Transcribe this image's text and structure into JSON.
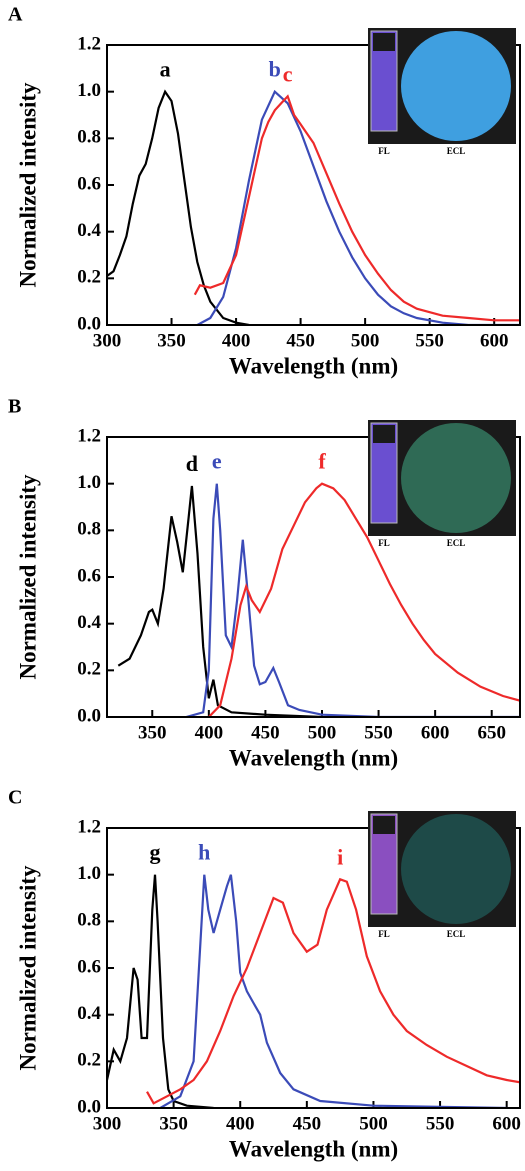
{
  "chart_data": [
    {
      "type": "line",
      "panel": "A",
      "xlabel": "Wavelength (nm)",
      "ylabel": "Normalized intensity",
      "xlim": [
        300,
        620
      ],
      "ylim": [
        0,
        1.2
      ],
      "xticks": [
        300,
        350,
        400,
        450,
        500,
        550,
        600
      ],
      "yticks": [
        {
          "value": 0,
          "label": "0.0"
        },
        0.2,
        0.4,
        0.6,
        0.8,
        {
          "value": 1,
          "label": "1.0"
        },
        1.2
      ],
      "inset": {
        "labels": [
          "FL",
          "ECL"
        ],
        "colors": [
          "#6a4fd0",
          "#3f9fe0"
        ]
      },
      "series": [
        {
          "name": "a",
          "color": "#000000",
          "x": [
            300,
            305,
            310,
            315,
            320,
            325,
            330,
            335,
            340,
            345,
            350,
            355,
            360,
            365,
            370,
            375,
            380,
            390,
            400,
            410
          ],
          "values": [
            0.21,
            0.23,
            0.3,
            0.38,
            0.52,
            0.64,
            0.69,
            0.8,
            0.93,
            1.0,
            0.96,
            0.82,
            0.62,
            0.42,
            0.27,
            0.17,
            0.1,
            0.03,
            0.01,
            0
          ]
        },
        {
          "name": "b",
          "color": "#3b4bb8",
          "x": [
            370,
            380,
            390,
            400,
            410,
            420,
            430,
            440,
            450,
            460,
            470,
            480,
            490,
            500,
            510,
            520,
            530,
            540,
            560,
            580,
            620
          ],
          "values": [
            0,
            0.03,
            0.12,
            0.33,
            0.62,
            0.88,
            1.0,
            0.95,
            0.83,
            0.68,
            0.53,
            0.4,
            0.29,
            0.2,
            0.13,
            0.08,
            0.05,
            0.03,
            0.01,
            0,
            0
          ]
        },
        {
          "name": "c",
          "color": "#ee2a2a",
          "x": [
            368,
            372,
            380,
            390,
            400,
            410,
            420,
            425,
            430,
            435,
            440,
            445,
            450,
            460,
            470,
            480,
            490,
            500,
            510,
            520,
            530,
            540,
            560,
            580,
            600,
            620
          ],
          "values": [
            0.13,
            0.17,
            0.16,
            0.18,
            0.3,
            0.55,
            0.8,
            0.87,
            0.92,
            0.95,
            0.98,
            0.9,
            0.86,
            0.78,
            0.65,
            0.52,
            0.4,
            0.3,
            0.22,
            0.15,
            0.1,
            0.07,
            0.04,
            0.03,
            0.02,
            0.02
          ]
        }
      ]
    },
    {
      "type": "line",
      "panel": "B",
      "xlabel": "Wavelength (nm)",
      "ylabel": "Normalized intensity",
      "xlim": [
        310,
        675
      ],
      "ylim": [
        0,
        1.2
      ],
      "xticks": [
        350,
        400,
        450,
        500,
        550,
        600,
        650
      ],
      "yticks": [
        {
          "value": 0,
          "label": "0.0"
        },
        0.2,
        0.4,
        0.6,
        0.8,
        {
          "value": 1,
          "label": "1.0"
        },
        1.2
      ],
      "inset": {
        "labels": [
          "FL",
          "ECL"
        ],
        "colors": [
          "#6a4fd0",
          "#2f6a55"
        ]
      },
      "series": [
        {
          "name": "d",
          "color": "#000000",
          "x": [
            320,
            330,
            340,
            347,
            350,
            355,
            360,
            367,
            372,
            377,
            382,
            385,
            390,
            395,
            400,
            404,
            408,
            420,
            450,
            500
          ],
          "values": [
            0.22,
            0.25,
            0.35,
            0.45,
            0.46,
            0.4,
            0.55,
            0.86,
            0.75,
            0.62,
            0.85,
            0.99,
            0.7,
            0.3,
            0.08,
            0.16,
            0.05,
            0.02,
            0.01,
            0
          ]
        },
        {
          "name": "e",
          "color": "#3b4bb8",
          "x": [
            380,
            395,
            400,
            404,
            407,
            410,
            415,
            420,
            425,
            430,
            435,
            440,
            445,
            450,
            457,
            462,
            470,
            480,
            490,
            500,
            550,
            675
          ],
          "values": [
            0,
            0.02,
            0.2,
            0.85,
            1.0,
            0.8,
            0.35,
            0.3,
            0.5,
            0.76,
            0.5,
            0.22,
            0.14,
            0.15,
            0.21,
            0.15,
            0.05,
            0.03,
            0.02,
            0.01,
            0,
            0
          ]
        },
        {
          "name": "f",
          "color": "#ee2a2a",
          "x": [
            400,
            410,
            420,
            428,
            433,
            438,
            445,
            455,
            465,
            475,
            485,
            495,
            500,
            510,
            520,
            530,
            540,
            550,
            560,
            570,
            580,
            590,
            600,
            620,
            640,
            660,
            675
          ],
          "values": [
            0,
            0.05,
            0.25,
            0.48,
            0.56,
            0.5,
            0.45,
            0.55,
            0.72,
            0.82,
            0.92,
            0.98,
            1.0,
            0.98,
            0.93,
            0.85,
            0.77,
            0.67,
            0.57,
            0.48,
            0.4,
            0.33,
            0.27,
            0.19,
            0.13,
            0.09,
            0.07
          ]
        }
      ]
    },
    {
      "type": "line",
      "panel": "C",
      "xlabel": "Wavelength (nm)",
      "ylabel": "Normalized intensity",
      "xlim": [
        300,
        610
      ],
      "ylim": [
        0,
        1.2
      ],
      "xticks": [
        300,
        350,
        400,
        450,
        500,
        550,
        600
      ],
      "yticks": [
        {
          "value": 0,
          "label": "0.0"
        },
        0.2,
        0.4,
        0.6,
        0.8,
        {
          "value": 1,
          "label": "1.0"
        },
        1.2
      ],
      "inset": {
        "labels": [
          "FL",
          "ECL"
        ],
        "colors": [
          "#8a4fc0",
          "#1e4a48"
        ]
      },
      "series": [
        {
          "name": "g",
          "color": "#000000",
          "x": [
            300,
            305,
            310,
            315,
            320,
            323,
            326,
            330,
            334,
            336,
            338,
            342,
            346,
            350,
            360,
            380
          ],
          "values": [
            0.12,
            0.25,
            0.2,
            0.3,
            0.6,
            0.55,
            0.3,
            0.3,
            0.85,
            1.0,
            0.8,
            0.3,
            0.08,
            0.03,
            0.01,
            0
          ]
        },
        {
          "name": "h",
          "color": "#3b4bb8",
          "x": [
            340,
            355,
            365,
            370,
            373,
            376,
            380,
            385,
            390,
            393,
            397,
            400,
            405,
            410,
            415,
            420,
            430,
            440,
            460,
            500,
            600
          ],
          "values": [
            0,
            0.05,
            0.2,
            0.7,
            1.0,
            0.85,
            0.75,
            0.85,
            0.95,
            1.0,
            0.8,
            0.58,
            0.5,
            0.45,
            0.4,
            0.28,
            0.15,
            0.08,
            0.03,
            0.01,
            0
          ]
        },
        {
          "name": "i",
          "color": "#ee2a2a",
          "x": [
            330,
            335,
            345,
            355,
            365,
            375,
            385,
            395,
            405,
            415,
            425,
            432,
            440,
            450,
            458,
            465,
            475,
            480,
            487,
            495,
            505,
            515,
            525,
            540,
            555,
            570,
            585,
            600,
            610
          ],
          "values": [
            0.07,
            0.02,
            0.05,
            0.08,
            0.12,
            0.2,
            0.33,
            0.48,
            0.6,
            0.75,
            0.9,
            0.88,
            0.75,
            0.67,
            0.7,
            0.85,
            0.98,
            0.97,
            0.85,
            0.65,
            0.5,
            0.4,
            0.33,
            0.27,
            0.22,
            0.18,
            0.14,
            0.12,
            0.11
          ]
        }
      ]
    }
  ]
}
